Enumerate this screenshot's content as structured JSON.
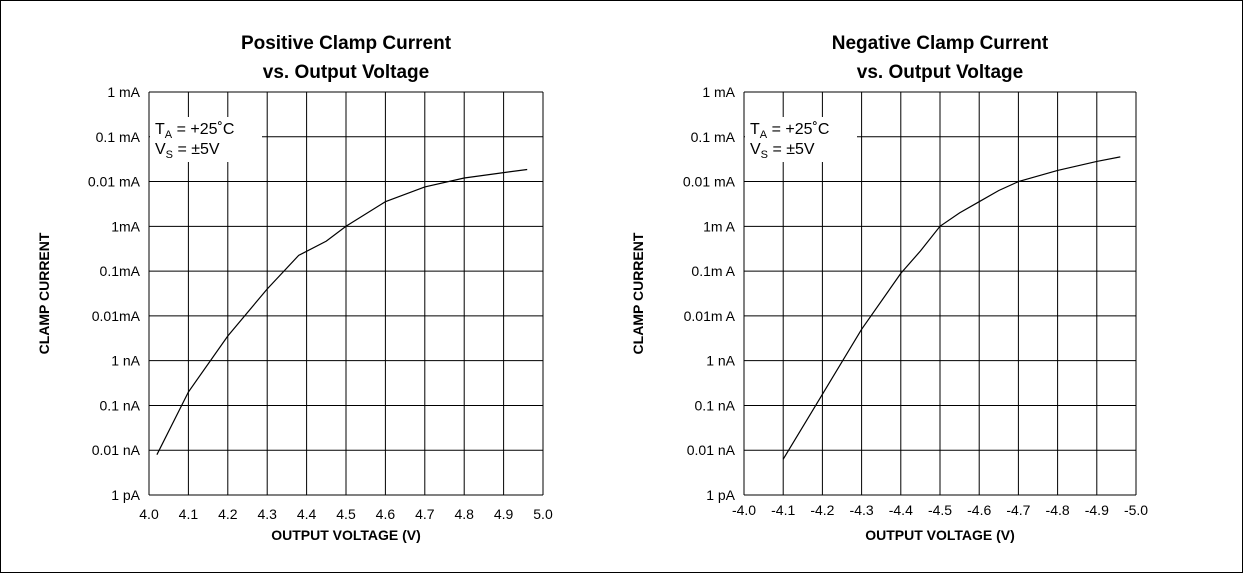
{
  "chart_data": [
    {
      "type": "line",
      "title_line1": "Positive Clamp Current",
      "title_line2": "vs. Output Voltage",
      "xlabel": "OUTPUT VOLTAGE (V)",
      "ylabel": "CLAMP CURRENT",
      "xticks": [
        "4.0",
        "4.1",
        "4.2",
        "4.3",
        "4.4",
        "4.5",
        "4.6",
        "4.7",
        "4.8",
        "4.9",
        "5.0"
      ],
      "yticks": [
        "1 mA",
        "0.1 mA",
        "0.01 mA",
        "1mA",
        "0.1mA",
        "0.01mA",
        "1 nA",
        "0.1 nA",
        "0.01 nA",
        "1 pA"
      ],
      "xlim": [
        4.0,
        5.0
      ],
      "ylim_decades": [
        0,
        9
      ],
      "annotation": {
        "ta_main": "T",
        "ta_sub": "A",
        "ta_value": " = +25˚C",
        "vs_main": "V",
        "vs_sub": "S",
        "vs_value": " = ±5V"
      },
      "grid": true,
      "series": [
        {
          "x": [
            4.02,
            4.1,
            4.2,
            4.3,
            4.38,
            4.45,
            4.5,
            4.6,
            4.7,
            4.8,
            4.9,
            4.96
          ],
          "y": [
            8.1,
            6.7,
            5.45,
            4.4,
            3.65,
            3.33,
            3.0,
            2.45,
            2.12,
            1.92,
            1.8,
            1.73
          ]
        }
      ]
    },
    {
      "type": "line",
      "title_line1": "Negative Clamp Current",
      "title_line2": "vs. Output Voltage",
      "xlabel": "OUTPUT VOLTAGE (V)",
      "ylabel": "CLAMP CURRENT",
      "xticks": [
        "-4.0",
        "-4.1",
        "-4.2",
        "-4.3",
        "-4.4",
        "-4.5",
        "-4.6",
        "-4.7",
        "-4.8",
        "-4.9",
        "-5.0"
      ],
      "yticks": [
        "1 mA",
        "0.1 mA",
        "0.01 mA",
        "1m A",
        "0.1m A",
        "0.01m A",
        "1 nA",
        "0.1 nA",
        "0.01 nA",
        "1 pA"
      ],
      "xlim": [
        -4.0,
        -5.0
      ],
      "ylim_decades": [
        0,
        9
      ],
      "annotation": {
        "ta_main": "T",
        "ta_sub": "A",
        "ta_value": " = +25˚C",
        "vs_main": "V",
        "vs_sub": "S",
        "vs_value": " = ±5V"
      },
      "grid": true,
      "series": [
        {
          "x": [
            -4.1,
            -4.2,
            -4.3,
            -4.4,
            -4.45,
            -4.5,
            -4.55,
            -4.6,
            -4.65,
            -4.7,
            -4.8,
            -4.9,
            -4.96
          ],
          "y": [
            8.2,
            6.75,
            5.3,
            4.05,
            3.55,
            3.0,
            2.7,
            2.45,
            2.2,
            2.0,
            1.75,
            1.55,
            1.45
          ]
        }
      ]
    }
  ]
}
